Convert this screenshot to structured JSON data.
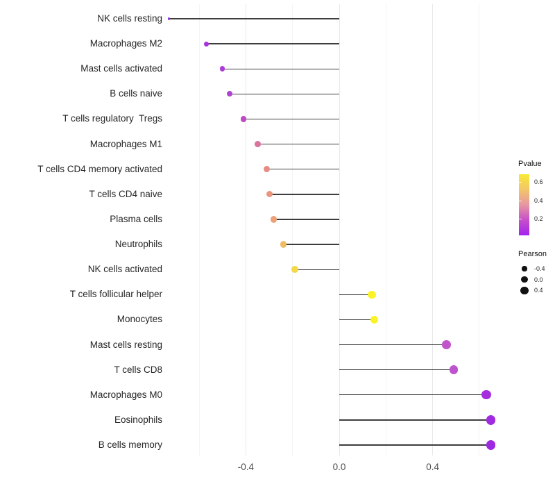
{
  "chart_data": {
    "type": "lollipop",
    "title": "",
    "xlabel": "",
    "ylabel": "",
    "x_ticks": [
      "-0.4",
      "0.0",
      "0.4"
    ],
    "x_tick_values": [
      -0.4,
      0.0,
      0.4
    ],
    "x_minor_values": [
      -0.6,
      -0.2,
      0.2,
      0.6
    ],
    "xlim": [
      -0.8,
      0.72
    ],
    "grid": true,
    "categories": [
      "NK cells resting",
      "Macrophages M2",
      "Mast cells activated",
      "B cells naive",
      "T cells regulatory  Tregs",
      "Macrophages M1",
      "T cells CD4 memory activated",
      "T cells CD4 naive",
      "Plasma cells",
      "Neutrophils",
      "NK cells activated",
      "T cells follicular helper",
      "Monocytes",
      "Mast cells resting",
      "T cells CD8",
      "Macrophages M0",
      "Eosinophils",
      "B cells memory"
    ],
    "series": [
      {
        "name": "Pearson",
        "values": [
          -0.73,
          -0.57,
          -0.5,
          -0.47,
          -0.41,
          -0.35,
          -0.31,
          -0.3,
          -0.28,
          -0.24,
          -0.19,
          0.14,
          0.15,
          0.46,
          0.49,
          0.63,
          0.65,
          0.65
        ]
      }
    ],
    "dot_colors": [
      "#9833E2",
      "#A635DC",
      "#AC3ED5",
      "#B243CF",
      "#BE49C4",
      "#D9749F",
      "#E78C85",
      "#EB957D",
      "#EDA17A",
      "#EFBC64",
      "#F3D94A",
      "#FAF326",
      "#FAF326",
      "#C154CA",
      "#BE54CD",
      "#A42DDE",
      "#A02BE0",
      "#9D29E1"
    ],
    "size_domain": [
      -0.73,
      0.65
    ],
    "stem_color": "#3d3d3d",
    "legend_position": "right"
  },
  "legend": {
    "pvalue": {
      "title": "Pvalue",
      "tick_labels": [
        "0.6",
        "0.4",
        "0.2"
      ],
      "tick_values": [
        0.6,
        0.4,
        0.2
      ],
      "domain_top": 0.685,
      "domain_bottom": 0.02,
      "gradient": [
        "#F8EA33",
        "#F3C569",
        "#E697A2",
        "#C64FC9",
        "#A322EF"
      ]
    },
    "pearson": {
      "title": "Pearson",
      "labels": [
        "-0.4",
        "0.0",
        "0.4"
      ],
      "values": [
        -0.4,
        0.0,
        0.4
      ]
    }
  }
}
